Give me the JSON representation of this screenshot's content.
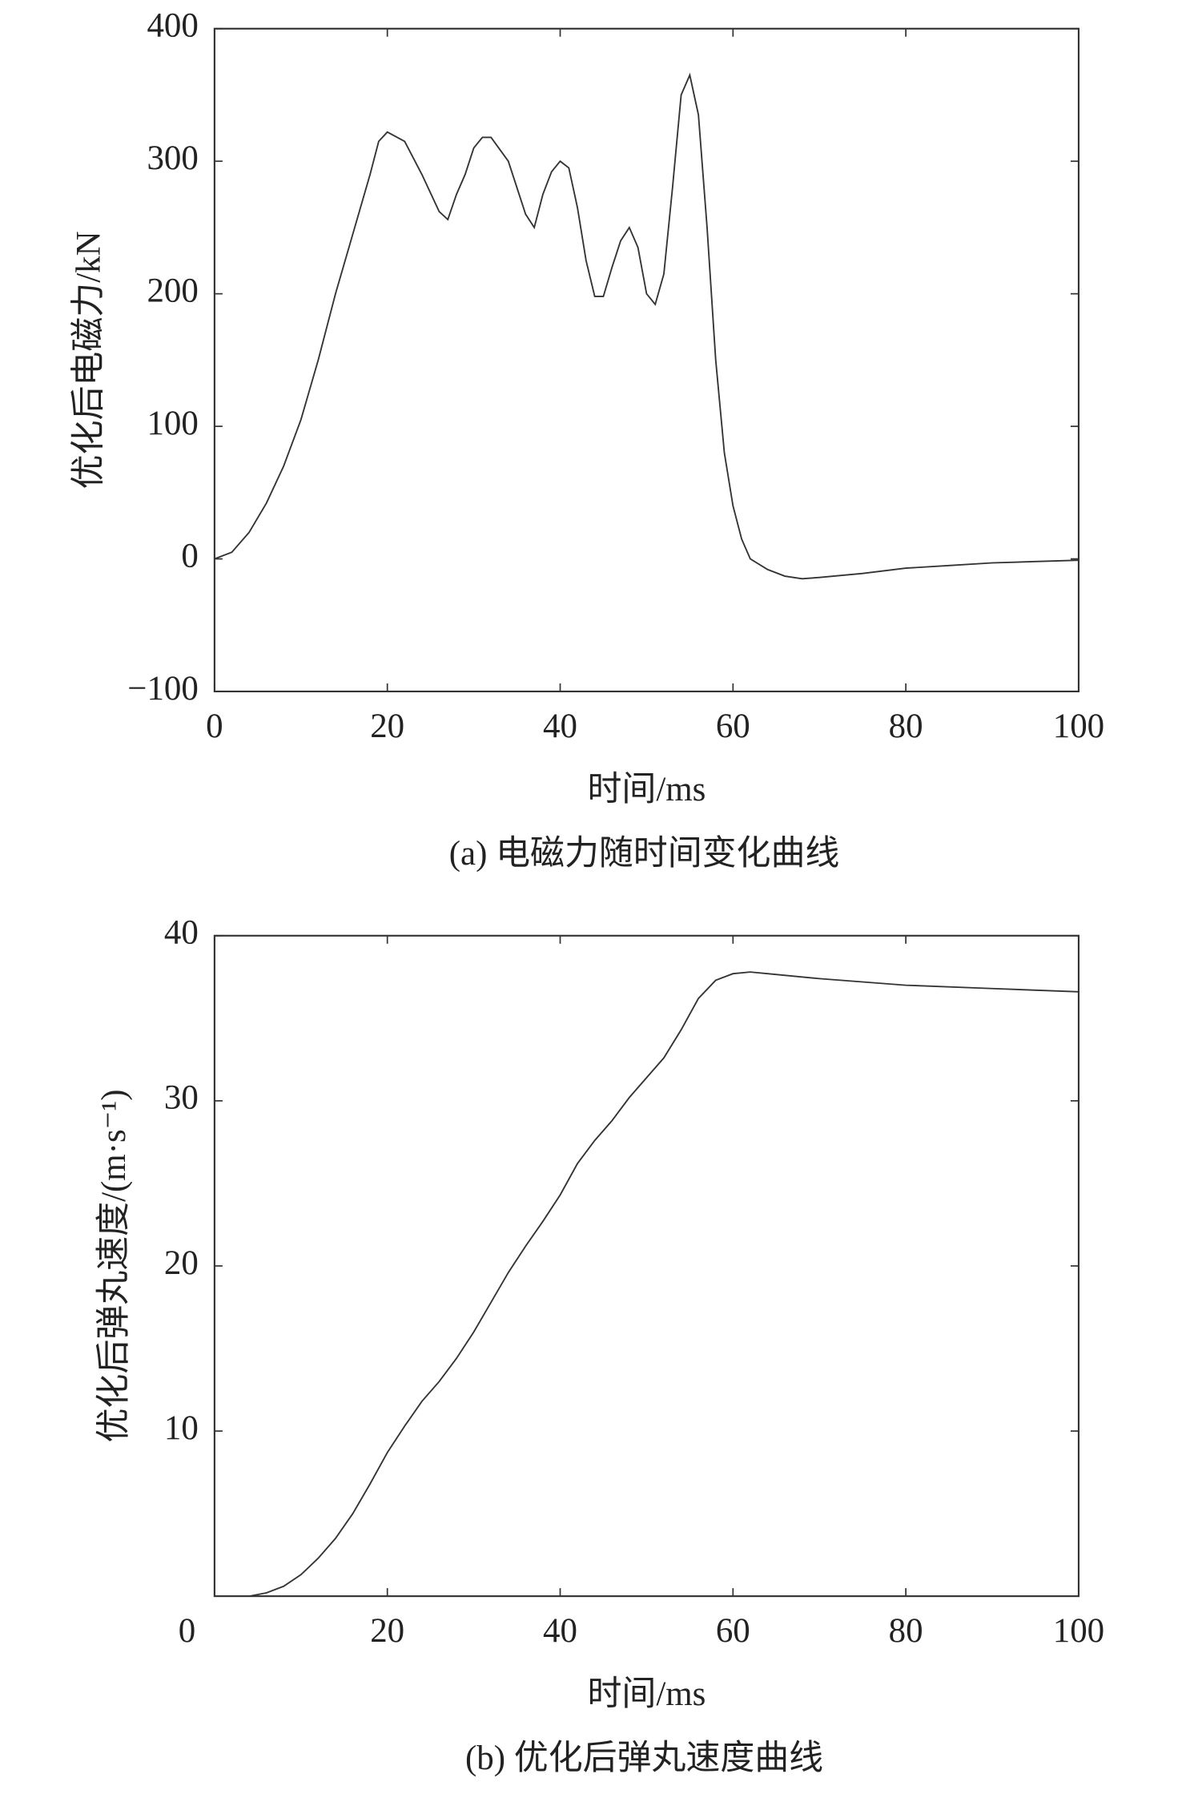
{
  "chart_data": [
    {
      "type": "line",
      "ylabel": "优化后电磁力/kN",
      "xlabel": "时间/ms",
      "caption": "(a) 电磁力随时间变化曲线",
      "x": [
        0,
        2,
        4,
        6,
        8,
        10,
        12,
        14,
        16,
        18,
        19,
        20,
        22,
        24,
        26,
        27,
        28,
        29,
        30,
        31,
        32,
        34,
        35,
        36,
        37,
        38,
        39,
        40,
        41,
        42,
        43,
        44,
        45,
        46,
        47,
        48,
        49,
        50,
        51,
        52,
        53,
        54,
        55,
        56,
        57,
        58,
        59,
        60,
        61,
        62,
        64,
        66,
        68,
        70,
        75,
        80,
        85,
        90,
        95,
        100
      ],
      "values": [
        0,
        5,
        20,
        42,
        70,
        105,
        150,
        200,
        245,
        290,
        315,
        322,
        315,
        290,
        262,
        256,
        275,
        290,
        310,
        318,
        318,
        300,
        280,
        260,
        250,
        275,
        292,
        300,
        295,
        265,
        225,
        198,
        198,
        220,
        240,
        250,
        235,
        200,
        192,
        215,
        280,
        350,
        365,
        335,
        250,
        150,
        80,
        40,
        15,
        0,
        -8,
        -13,
        -15,
        -14,
        -11,
        -7,
        -5,
        -3,
        -2,
        -1
      ],
      "color": "#333333",
      "xlim": [
        0,
        100
      ],
      "xticks": [
        0,
        20,
        40,
        60,
        80,
        100
      ],
      "ylim": [
        -100,
        400
      ],
      "yticks": [
        {
          "value": -100,
          "label": "−100"
        },
        0,
        100,
        200,
        300,
        400
      ]
    },
    {
      "type": "line",
      "ylabel": "优化后弹丸速度/(m·s⁻¹)",
      "xlabel": "时间/ms",
      "caption": "(b) 优化后弹丸速度曲线",
      "x": [
        0,
        4,
        6,
        8,
        10,
        12,
        14,
        16,
        18,
        20,
        22,
        24,
        26,
        28,
        30,
        32,
        34,
        36,
        38,
        40,
        42,
        44,
        46,
        48,
        50,
        52,
        54,
        56,
        58,
        60,
        62,
        64,
        70,
        80,
        90,
        100
      ],
      "values": [
        0,
        0,
        0.2,
        0.6,
        1.3,
        2.3,
        3.5,
        5,
        6.8,
        8.7,
        10.3,
        11.8,
        13,
        14.4,
        16,
        17.8,
        19.6,
        21.2,
        22.7,
        24.3,
        26.2,
        27.6,
        28.8,
        30.2,
        31.4,
        32.6,
        34.3,
        36.2,
        37.3,
        37.7,
        37.8,
        37.7,
        37.4,
        37,
        36.8,
        36.6
      ],
      "color": "#333333",
      "xlim": [
        0,
        100
      ],
      "xticks": [
        0,
        20,
        40,
        60,
        80,
        100
      ],
      "ylim": [
        0,
        40
      ],
      "yticks": [
        10,
        20,
        30,
        40
      ]
    }
  ]
}
